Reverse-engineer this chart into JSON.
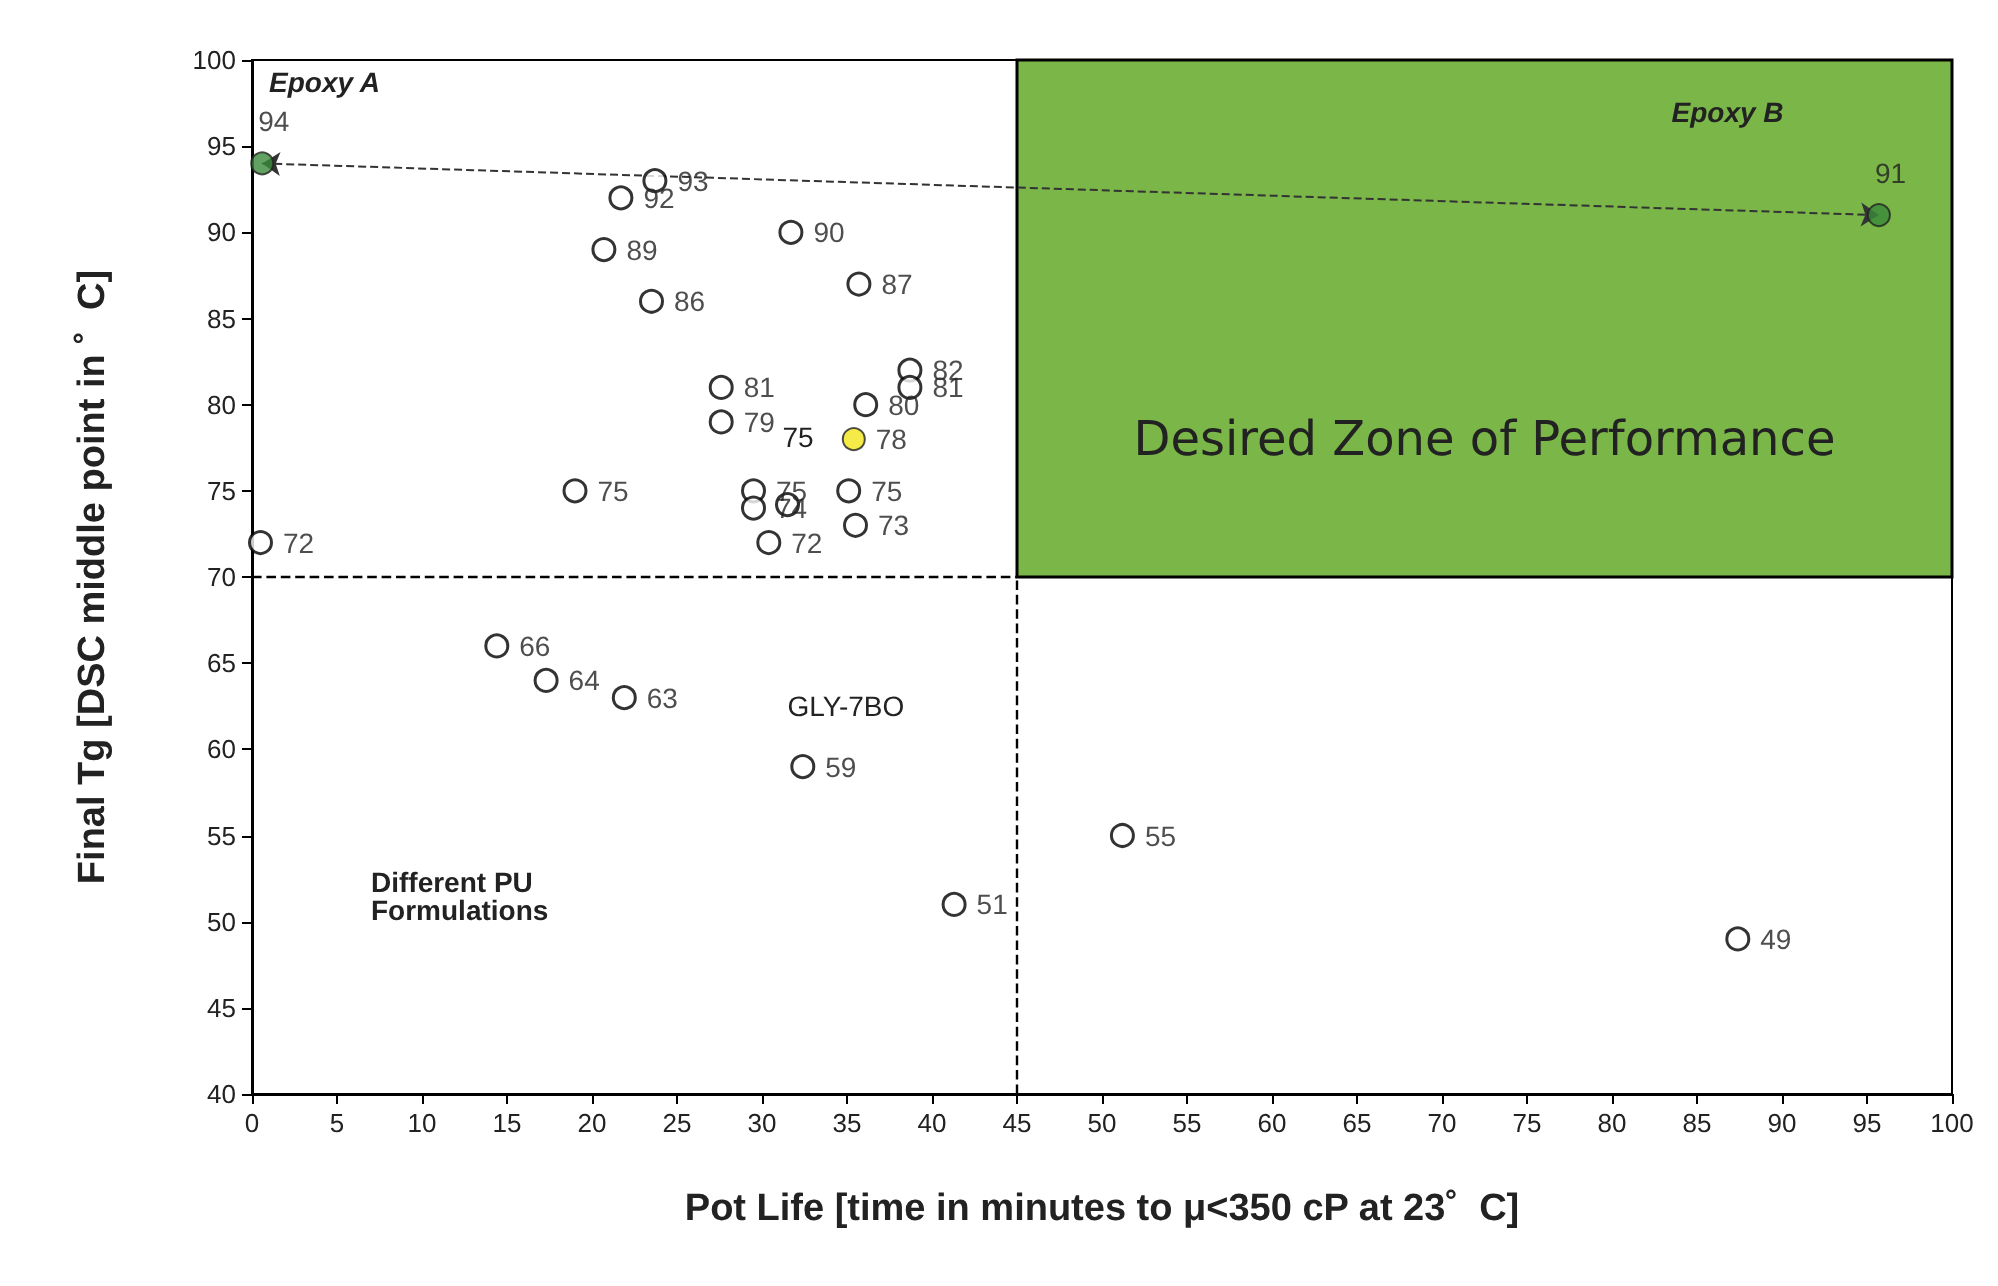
{
  "chart_data": {
    "type": "scatter",
    "xlabel": "Pot Life [time in minutes to μ<350 cP at 23˚  C]",
    "ylabel": "Final Tg [DSC middle point in ˚  C]",
    "xlim": [
      0,
      100
    ],
    "xticks": [
      0,
      5,
      10,
      15,
      20,
      25,
      30,
      35,
      40,
      45,
      50,
      55,
      60,
      65,
      70,
      75,
      80,
      85,
      90,
      95,
      100
    ],
    "ylim": [
      40,
      100
    ],
    "yticks": [
      40,
      45,
      50,
      55,
      60,
      65,
      70,
      75,
      80,
      85,
      90,
      95,
      100
    ],
    "grid": false,
    "marker": "circle",
    "series": [
      {
        "color": "#000000",
        "x": [
          23.7,
          21.7,
          20.7,
          23.5,
          31.7,
          35.7,
          36.1,
          38.7,
          38.7,
          27.6,
          27.6,
          19.0,
          29.5,
          31.5,
          29.5,
          30.4,
          35.1,
          35.5,
          0.5,
          14.4,
          17.3,
          21.9,
          32.4,
          41.3,
          51.2,
          87.4
        ],
        "values": [
          93,
          92,
          89,
          86,
          90,
          87,
          80,
          82,
          81,
          81,
          79,
          75,
          75,
          74.2,
          74,
          72,
          75,
          73,
          72,
          66,
          64,
          63,
          59,
          51,
          55,
          49
        ],
        "value_labels": [
          "93",
          "92",
          "89",
          "86",
          "90",
          "87",
          "80",
          "82",
          "81",
          "81",
          "79",
          "75",
          "75",
          null,
          "74",
          "72",
          "75",
          "73",
          "72",
          "66",
          "64",
          "63",
          "59",
          "51",
          "55",
          "49"
        ]
      },
      {
        "color": "#f2e61a",
        "x": [
          35.4
        ],
        "values": [
          78
        ],
        "value_labels": [
          "78"
        ]
      },
      {
        "color": "#3a8a3a",
        "x": [
          0.6,
          95.7
        ],
        "values": [
          94,
          91
        ],
        "value_labels": [
          "94",
          "91"
        ]
      }
    ],
    "ref_lines": [
      {
        "axis": "y",
        "value": 70,
        "line_style": "dashed",
        "color": "#000000"
      },
      {
        "axis": "x",
        "value": 45,
        "line_style": "dashed",
        "color": "#000000"
      }
    ],
    "bands": [
      {
        "axis": "x",
        "from": 45,
        "to": 100,
        "label": "Desired Zone of Performance",
        "color": "#7ab648"
      }
    ],
    "annotations": [
      "Epoxy A",
      "Epoxy B",
      "75",
      "GLY-7BO",
      "Different PU Formulations"
    ]
  }
}
